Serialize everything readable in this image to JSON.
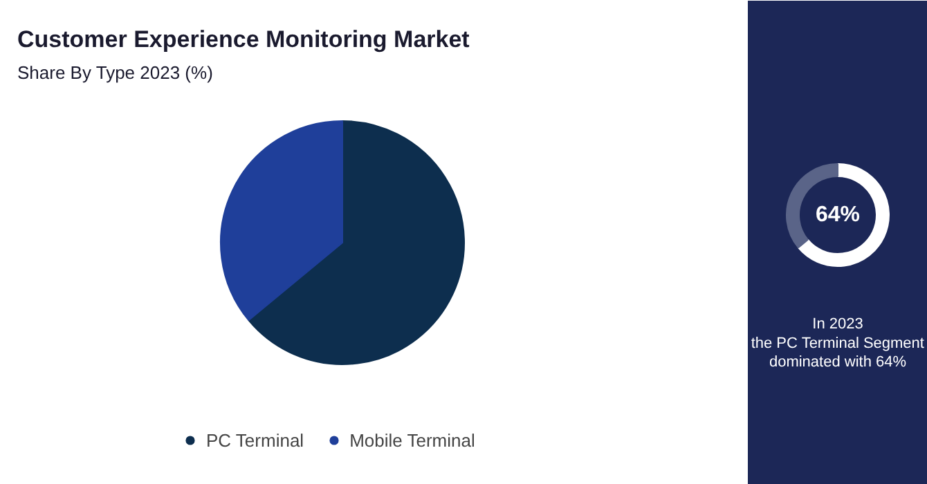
{
  "chart_data": [
    {
      "type": "pie",
      "title": "Customer Experience Monitoring Market",
      "subtitle": "Share By Type 2023 (%)",
      "categories": [
        "PC Terminal",
        "Mobile Terminal"
      ],
      "values": [
        64,
        36
      ],
      "colors": [
        "#0d2e4e",
        "#1f3f9a"
      ],
      "legend": "bottom"
    },
    {
      "type": "donut",
      "categories": [
        null,
        null
      ],
      "values": [
        64,
        36
      ],
      "colors": [
        "#ffffff",
        "#5a6488"
      ],
      "value_labels": [
        "64%",
        null
      ],
      "annotations": [
        "In 2023\nthe PC Terminal Segment\ndominated with 64%"
      ]
    }
  ]
}
